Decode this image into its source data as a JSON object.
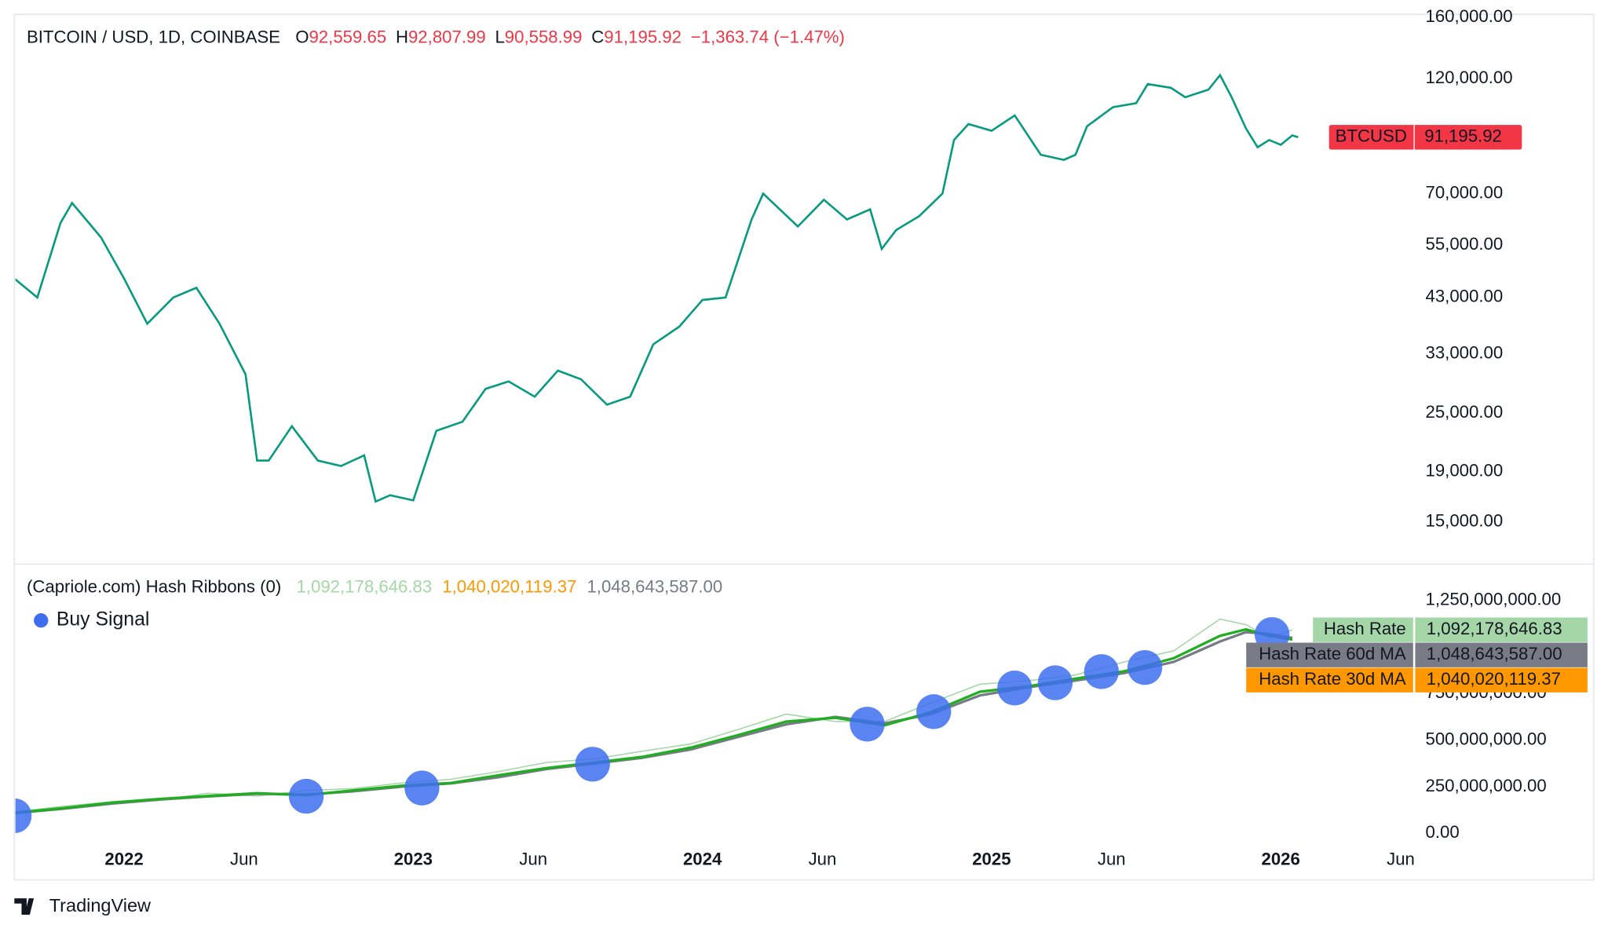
{
  "footer": "TradingView",
  "chart_data": [
    {
      "type": "line",
      "title": "BITCOIN / USD, 1D, COINBASE",
      "ohlc": [
        {
          "label": "O",
          "value": "92,559.65"
        },
        {
          "label": "H",
          "value": "92,807.99"
        },
        {
          "label": "L",
          "value": "90,558.99"
        },
        {
          "label": "C",
          "value": "91,195.92"
        }
      ],
      "change": "−1,363.74 (−1.47%)",
      "log_scale": true,
      "xlim": [
        2021.624,
        2026.465
      ],
      "ylim": [
        12430,
        162300
      ],
      "yticks": [
        {
          "value": 15000,
          "label": "15,000.00"
        },
        {
          "value": 19000,
          "label": "19,000.00"
        },
        {
          "value": 25000,
          "label": "25,000.00"
        },
        {
          "value": 33000,
          "label": "33,000.00"
        },
        {
          "value": 43000,
          "label": "43,000.00"
        },
        {
          "value": 55000,
          "label": "55,000.00"
        },
        {
          "value": 70000,
          "label": "70,000.00"
        },
        {
          "value": 120000,
          "label": "120,000.00"
        },
        {
          "value": 160000,
          "label": "160,000.00"
        }
      ],
      "series": [
        {
          "name": "BTCUSD",
          "color": "#089981",
          "tag_color": "#f23645",
          "last_value_label": "91,195.92",
          "x": [
            2021.62,
            2021.7,
            2021.78,
            2021.82,
            2021.92,
            2022.0,
            2022.08,
            2022.17,
            2022.25,
            2022.33,
            2022.42,
            2022.46,
            2022.5,
            2022.58,
            2022.67,
            2022.75,
            2022.83,
            2022.87,
            2022.92,
            2023.0,
            2023.08,
            2023.17,
            2023.25,
            2023.33,
            2023.42,
            2023.5,
            2023.58,
            2023.67,
            2023.75,
            2023.83,
            2023.92,
            2024.0,
            2024.08,
            2024.17,
            2024.21,
            2024.33,
            2024.42,
            2024.5,
            2024.58,
            2024.62,
            2024.67,
            2024.75,
            2024.83,
            2024.87,
            2024.92,
            2025.0,
            2025.08,
            2025.17,
            2025.25,
            2025.29,
            2025.33,
            2025.42,
            2025.5,
            2025.54,
            2025.62,
            2025.67,
            2025.75,
            2025.79,
            2025.83,
            2025.88,
            2025.92,
            2025.96,
            2026.0,
            2026.04,
            2026.06
          ],
          "values": [
            47000,
            43000,
            61000,
            67000,
            57000,
            47000,
            38000,
            43000,
            45000,
            38000,
            30000,
            20000,
            20000,
            23500,
            20000,
            19500,
            20500,
            16500,
            17000,
            16600,
            23000,
            24000,
            28000,
            29000,
            27000,
            30500,
            29300,
            26000,
            27000,
            34500,
            37500,
            42500,
            43000,
            62000,
            70000,
            60000,
            68000,
            62000,
            65000,
            54000,
            59000,
            63000,
            70000,
            90000,
            97000,
            94000,
            101000,
            84000,
            82000,
            84000,
            96000,
            105000,
            107000,
            117000,
            115000,
            110000,
            114000,
            122000,
            110000,
            95000,
            87000,
            90000,
            88000,
            92000,
            91195.92
          ]
        }
      ]
    },
    {
      "type": "line",
      "title": "(Capriole.com) Hash Ribbons (0)",
      "xlim": [
        2021.624,
        2026.465
      ],
      "xticks": [
        2022,
        {
          "value": 2022.415,
          "label": "Jun"
        },
        2023,
        {
          "value": 2023.415,
          "label": "Jun"
        },
        2024,
        {
          "value": 2024.415,
          "label": "Jun"
        },
        2025,
        {
          "value": 2025.415,
          "label": "Jun"
        },
        2026,
        {
          "value": 2026.415,
          "label": "Jun"
        }
      ],
      "ylim": [
        -30000000,
        1440000000
      ],
      "yticks": [
        {
          "value": 0,
          "label": "0.00"
        },
        {
          "value": 250000000,
          "label": "250,000,000.00"
        },
        {
          "value": 500000000,
          "label": "500,000,000.00"
        },
        {
          "value": 750000000,
          "label": "750,000,000.00"
        },
        {
          "value": 1250000000,
          "label": "1,250,000,000.00"
        }
      ],
      "x": [
        2021.62,
        2021.79,
        2021.96,
        2022.13,
        2022.29,
        2022.46,
        2022.63,
        2022.79,
        2022.96,
        2023.13,
        2023.29,
        2023.46,
        2023.63,
        2023.79,
        2023.96,
        2024.13,
        2024.29,
        2024.46,
        2024.63,
        2024.79,
        2024.96,
        2025.13,
        2025.29,
        2025.46,
        2025.63,
        2025.79,
        2025.88,
        2025.96,
        2026.04
      ],
      "series": [
        {
          "name": "Hash Rate",
          "color": "#a5d6a7",
          "last_value_label": "1,092,178,646.83",
          "values": [
            115000000,
            145000000,
            170000000,
            180000000,
            215000000,
            200000000,
            230000000,
            240000000,
            270000000,
            290000000,
            330000000,
            380000000,
            400000000,
            440000000,
            480000000,
            560000000,
            640000000,
            600000000,
            600000000,
            700000000,
            800000000,
            820000000,
            850000000,
            920000000,
            980000000,
            1150000000,
            1120000000,
            1050000000,
            1092178646.83
          ]
        },
        {
          "name": "Hash Rate 60d MA",
          "color": "#787b86",
          "last_value_label": "1,048,643,587.00",
          "values": [
            108000000,
            132000000,
            160000000,
            182000000,
            198000000,
            212000000,
            208000000,
            225000000,
            250000000,
            268000000,
            300000000,
            345000000,
            375000000,
            405000000,
            450000000,
            520000000,
            585000000,
            625000000,
            590000000,
            640000000,
            740000000,
            785000000,
            820000000,
            860000000,
            920000000,
            1030000000,
            1080000000,
            1070000000,
            1048643587.0
          ]
        },
        {
          "name": "Hash Rate 30d MA",
          "color": "#ff9800",
          "line_color": "#1fae1f",
          "last_value_label": "1,040,020,119.37",
          "values": [
            110000000,
            135000000,
            165000000,
            185000000,
            200000000,
            215000000,
            205000000,
            230000000,
            255000000,
            270000000,
            310000000,
            350000000,
            380000000,
            410000000,
            460000000,
            530000000,
            600000000,
            620000000,
            580000000,
            650000000,
            760000000,
            790000000,
            830000000,
            870000000,
            940000000,
            1060000000,
            1095000000,
            1060000000,
            1040020119.37
          ]
        }
      ],
      "buy_signals": {
        "name": "Buy Signal",
        "color": "#3d6ef0",
        "x": [
          2021.62,
          2022.63,
          2023.03,
          2023.62,
          2024.57,
          2024.8,
          2025.08,
          2025.22,
          2025.38,
          2025.53,
          2025.97
        ],
        "values": [
          94000000,
          199000000,
          243000000,
          371000000,
          586000000,
          653000000,
          780000000,
          808000000,
          868000000,
          890000000,
          1067000000
        ]
      }
    }
  ]
}
